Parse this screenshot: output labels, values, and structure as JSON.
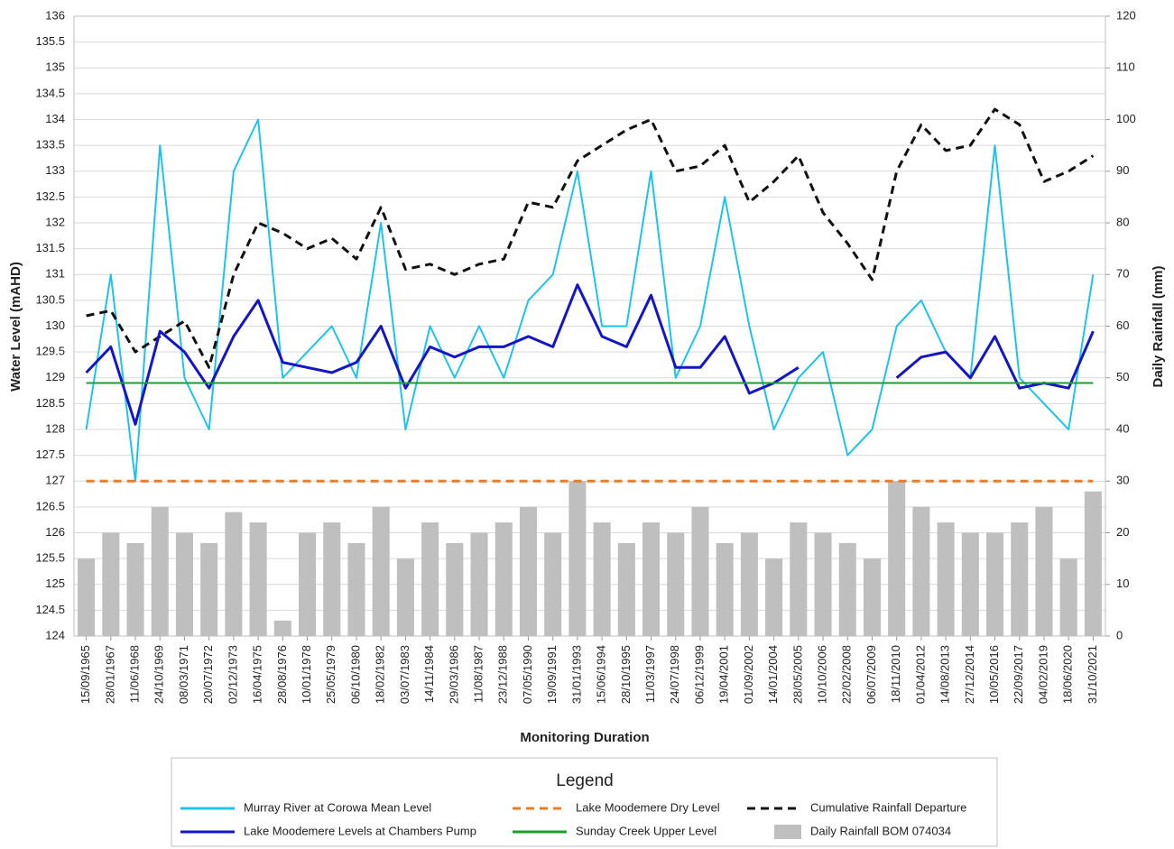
{
  "chart_data": {
    "type": "line",
    "x_label": "Monitoring Duration",
    "y_label": "Water Level (mAHD)",
    "y2_label": "Daily Rainfall (mm)",
    "legend_title": "Legend",
    "grid": true,
    "categories": [
      "15/09/1965",
      "28/01/1967",
      "11/06/1968",
      "24/10/1969",
      "08/03/1971",
      "20/07/1972",
      "02/12/1973",
      "16/04/1975",
      "28/08/1976",
      "10/01/1978",
      "25/05/1979",
      "06/10/1980",
      "18/02/1982",
      "03/07/1983",
      "14/11/1984",
      "29/03/1986",
      "11/08/1987",
      "23/12/1988",
      "07/05/1990",
      "19/09/1991",
      "31/01/1993",
      "15/06/1994",
      "28/10/1995",
      "11/03/1997",
      "24/07/1998",
      "06/12/1999",
      "19/04/2001",
      "01/09/2002",
      "14/01/2004",
      "28/05/2005",
      "10/10/2006",
      "22/02/2008",
      "06/07/2009",
      "18/11/2010",
      "01/04/2012",
      "14/08/2013",
      "27/12/2014",
      "10/05/2016",
      "22/09/2017",
      "04/02/2019",
      "18/06/2020",
      "31/10/2021"
    ],
    "ylim": [
      124,
      136
    ],
    "yticks": [
      124,
      124.5,
      125,
      125.5,
      126,
      126.5,
      127,
      127.5,
      128,
      128.5,
      129,
      129.5,
      130,
      130.5,
      131,
      131.5,
      132,
      132.5,
      133,
      133.5,
      134,
      134.5,
      135,
      135.5,
      136
    ],
    "y2lim": [
      0,
      120
    ],
    "y2ticks": [
      0,
      10,
      20,
      30,
      40,
      50,
      60,
      70,
      80,
      90,
      100,
      110,
      120
    ],
    "series": [
      {
        "name": "Murray River at Corowa Mean Level",
        "kind": "line",
        "color": "#1fc3ea",
        "values": [
          128,
          131,
          127,
          133.5,
          129,
          128,
          133,
          134,
          129,
          129.5,
          130,
          129,
          132,
          128,
          130,
          129,
          130,
          129,
          130.5,
          131,
          133,
          130,
          130,
          133,
          129,
          130,
          132.5,
          130,
          128,
          129,
          129.5,
          127.5,
          128,
          130,
          130.5,
          129.5,
          129,
          133.5,
          129,
          128.5,
          128,
          131
        ]
      },
      {
        "name": "Lake Moodemere Dry Level",
        "kind": "line",
        "dash": true,
        "color": "#f07c22",
        "values": [
          127,
          127,
          127,
          127,
          127,
          127,
          127,
          127,
          127,
          127,
          127,
          127,
          127,
          127,
          127,
          127,
          127,
          127,
          127,
          127,
          127,
          127,
          127,
          127,
          127,
          127,
          127,
          127,
          127,
          127,
          127,
          127,
          127,
          127,
          127,
          127,
          127,
          127,
          127,
          127,
          127,
          127
        ]
      },
      {
        "name": "Cumulative Rainfall Departure",
        "kind": "line",
        "dash": true,
        "axis": "y2",
        "color": "#111111",
        "values": [
          62,
          63,
          55,
          58,
          61,
          52,
          70,
          80,
          78,
          75,
          77,
          73,
          83,
          71,
          72,
          70,
          72,
          73,
          84,
          83,
          92,
          95,
          98,
          100,
          90,
          91,
          95,
          84,
          88,
          93,
          82,
          76,
          69,
          90,
          99,
          94,
          95,
          102,
          99,
          88,
          90,
          93
        ]
      },
      {
        "name": "Lake Moodemere Levels at Chambers Pump",
        "kind": "line",
        "color": "#1515c8",
        "values": [
          129.1,
          129.6,
          128.1,
          129.9,
          129.5,
          128.8,
          129.8,
          130.5,
          129.3,
          129.2,
          129.1,
          129.3,
          130,
          128.8,
          129.6,
          129.4,
          129.6,
          129.6,
          129.8,
          129.6,
          130.8,
          129.8,
          129.6,
          130.6,
          129.2,
          129.2,
          129.8,
          128.7,
          128.9,
          129.2,
          null,
          null,
          null,
          129,
          129.4,
          129.5,
          129,
          129.8,
          128.8,
          128.9,
          128.8,
          129.9
        ]
      },
      {
        "name": "Sunday Creek Upper Level",
        "kind": "line",
        "color": "#1e9e2e",
        "values": [
          128.9,
          128.9,
          128.9,
          128.9,
          128.9,
          128.9,
          128.9,
          128.9,
          128.9,
          128.9,
          128.9,
          128.9,
          128.9,
          128.9,
          128.9,
          128.9,
          128.9,
          128.9,
          128.9,
          128.9,
          128.9,
          128.9,
          128.9,
          128.9,
          128.9,
          128.9,
          128.9,
          128.9,
          128.9,
          128.9,
          128.9,
          128.9,
          128.9,
          128.9,
          128.9,
          128.9,
          128.9,
          128.9,
          128.9,
          128.9,
          128.9,
          128.9
        ]
      },
      {
        "name": "Daily Rainfall BOM 074034",
        "kind": "bar",
        "axis": "y2",
        "color": "#bfbfbf",
        "values": [
          15,
          20,
          18,
          25,
          20,
          18,
          24,
          22,
          3,
          20,
          22,
          18,
          25,
          15,
          22,
          18,
          20,
          22,
          25,
          20,
          30,
          22,
          18,
          22,
          20,
          25,
          18,
          20,
          15,
          22,
          20,
          18,
          15,
          30,
          25,
          22,
          20,
          20,
          22,
          25,
          15,
          28
        ]
      }
    ]
  }
}
